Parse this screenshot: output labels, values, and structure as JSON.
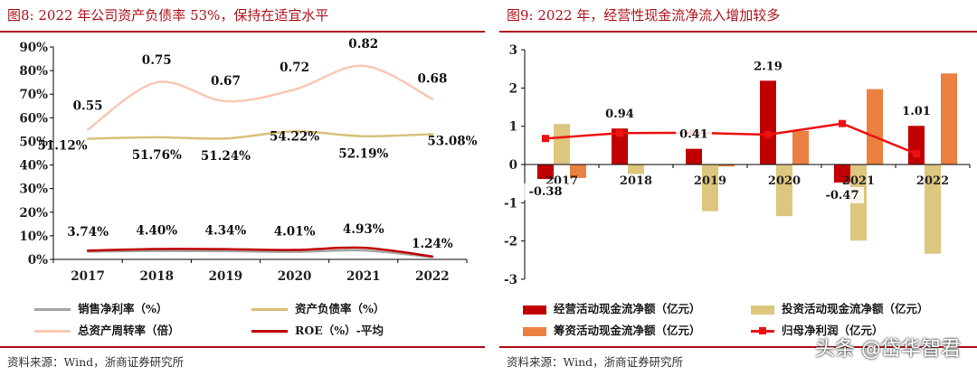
{
  "left": {
    "title": "图8:   2022 年公司资产负债率 53%，保持在适宜水平",
    "source": "资料来源：Wind，浙商证券研究所"
  },
  "right": {
    "title": "图9:   2022 年，经营性现金流净流入增加较多",
    "source": "资料来源：Wind，浙商证券研究所"
  },
  "watermark": "头条 @岱华智君",
  "chart_data": [
    {
      "type": "line",
      "title": "",
      "categories": [
        "2017",
        "2018",
        "2019",
        "2020",
        "2021",
        "2022"
      ],
      "ylim": [
        0,
        90
      ],
      "yticks": [
        "0%",
        "10%",
        "20%",
        "30%",
        "40%",
        "50%",
        "60%",
        "70%",
        "80%",
        "90%"
      ],
      "grid": false,
      "series": [
        {
          "name": "销售净利率（%）",
          "color": "#a6a6a6",
          "values": [
            3.3,
            3.6,
            3.5,
            3.2,
            3.8,
            1.0
          ],
          "labels": []
        },
        {
          "name": "资产负债率（%）",
          "color": "#d8c07a",
          "values": [
            51.12,
            51.76,
            51.24,
            54.22,
            52.19,
            53.08
          ],
          "labels": [
            "51.12%",
            "51.76%",
            "51.24%",
            "54.22%",
            "52.19%",
            "53.08%"
          ]
        },
        {
          "name": "总资产周转率（倍）",
          "color": "#f8c8b2",
          "values": [
            0.55,
            0.75,
            0.67,
            0.72,
            0.82,
            0.68
          ],
          "labels": [
            "0.55",
            "0.75",
            "0.67",
            "0.72",
            "0.82",
            "0.68"
          ]
        },
        {
          "name": "ROE（%）-平均",
          "color": "#c00000",
          "values": [
            3.74,
            4.4,
            4.34,
            4.01,
            4.93,
            1.24
          ],
          "labels": [
            "3.74%",
            "4.40%",
            "4.34%",
            "4.01%",
            "4.93%",
            "1.24%"
          ]
        }
      ],
      "legend_placement": "bottom"
    },
    {
      "type": "bar",
      "title": "",
      "categories": [
        "2017",
        "2018",
        "2019",
        "2020",
        "2021",
        "2022"
      ],
      "ylim": [
        -3,
        3
      ],
      "yticks": [
        "-3",
        "-2",
        "-1",
        "0",
        "1",
        "2",
        "3"
      ],
      "grid": false,
      "series": [
        {
          "name": "经营活动现金流净额（亿元）",
          "color": "#c00000",
          "values": [
            -0.38,
            0.94,
            0.41,
            2.19,
            -0.47,
            1.01
          ],
          "labels": [
            "-0.38",
            "0.94",
            "0.41",
            "2.19",
            "-0.47",
            "1.01"
          ]
        },
        {
          "name": "投资活动现金流净额（亿元）",
          "color": "#ddc67e",
          "values": [
            1.06,
            -0.25,
            -1.22,
            -1.35,
            -1.99,
            -2.33
          ],
          "labels": []
        },
        {
          "name": "筹资活动现金流净额（亿元）",
          "color": "#eb8040",
          "values": [
            -0.35,
            0,
            -0.05,
            0.88,
            1.97,
            2.38
          ],
          "labels": []
        },
        {
          "name": "归母净利润（亿元）",
          "color": "#ee1111",
          "type": "line",
          "values": [
            0.68,
            0.82,
            0.83,
            0.78,
            1.07,
            0.28
          ],
          "labels": []
        }
      ],
      "legend_placement": "bottom"
    }
  ]
}
